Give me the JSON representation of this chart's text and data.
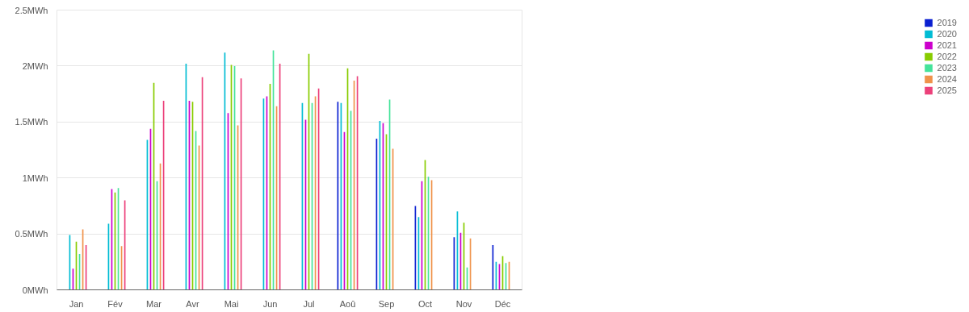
{
  "chart_data": {
    "type": "bar",
    "categories": [
      "Jan",
      "Fév",
      "Mar",
      "Avr",
      "Mai",
      "Jun",
      "Jul",
      "Aoû",
      "Sep",
      "Oct",
      "Nov",
      "Déc"
    ],
    "series": [
      {
        "name": "2019",
        "color": "#0a1fd1",
        "values": [
          null,
          null,
          null,
          null,
          null,
          null,
          null,
          1.68,
          1.35,
          0.75,
          0.47,
          0.4
        ]
      },
      {
        "name": "2020",
        "color": "#00bcd4",
        "values": [
          0.49,
          0.59,
          1.34,
          2.02,
          2.12,
          1.71,
          1.67,
          1.67,
          1.51,
          0.65,
          0.7,
          0.25
        ]
      },
      {
        "name": "2021",
        "color": "#cc00cc",
        "values": [
          0.19,
          0.9,
          1.44,
          1.69,
          1.58,
          1.73,
          1.52,
          1.41,
          1.49,
          0.97,
          0.51,
          0.23
        ]
      },
      {
        "name": "2022",
        "color": "#88cc00",
        "values": [
          0.43,
          0.87,
          1.85,
          1.68,
          2.01,
          1.84,
          2.11,
          1.98,
          1.39,
          1.16,
          0.6,
          0.3
        ]
      },
      {
        "name": "2023",
        "color": "#44e39a",
        "values": [
          0.32,
          0.91,
          0.97,
          1.42,
          2.0,
          2.14,
          1.67,
          1.6,
          1.7,
          1.01,
          0.2,
          0.24
        ]
      },
      {
        "name": "2024",
        "color": "#f0924a",
        "values": [
          0.54,
          0.39,
          1.13,
          1.29,
          1.47,
          1.64,
          1.73,
          1.87,
          1.26,
          0.98,
          0.46,
          0.25
        ]
      },
      {
        "name": "2025",
        "color": "#ec407a",
        "values": [
          0.4,
          0.8,
          1.69,
          1.9,
          1.89,
          2.02,
          1.8,
          1.91,
          null,
          null,
          null,
          null
        ]
      }
    ],
    "ylim": [
      0,
      2.5
    ],
    "yticks": [
      {
        "value": 0,
        "label": "0MWh"
      },
      {
        "value": 0.5,
        "label": "0.5MWh"
      },
      {
        "value": 1,
        "label": "1MWh"
      },
      {
        "value": 1.5,
        "label": "1.5MWh"
      },
      {
        "value": 2,
        "label": "2MWh"
      },
      {
        "value": 2.5,
        "label": "2.5MWh"
      }
    ],
    "grid": "y",
    "legend": "right"
  }
}
